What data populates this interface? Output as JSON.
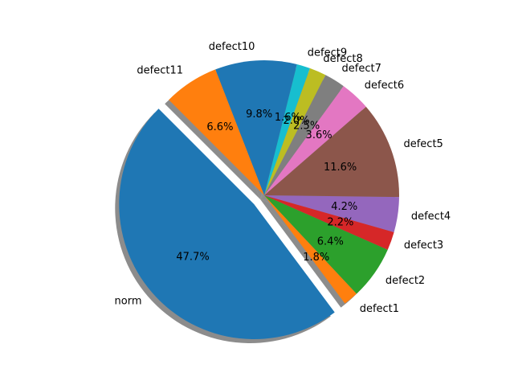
{
  "chart_data": {
    "type": "pie",
    "title": "",
    "start_angle_deg": 135,
    "direction": "counterclockwise",
    "shadow": true,
    "exploded": [
      "norm"
    ],
    "slices": [
      {
        "label": "norm",
        "value": 47.7,
        "pct_label": "47.7%",
        "color": "#1f77b4"
      },
      {
        "label": "defect1",
        "value": 1.8,
        "pct_label": "1.8%",
        "color": "#ff7f0e"
      },
      {
        "label": "defect2",
        "value": 6.4,
        "pct_label": "6.4%",
        "color": "#2ca02c"
      },
      {
        "label": "defect3",
        "value": 2.2,
        "pct_label": "2.2%",
        "color": "#d62728"
      },
      {
        "label": "defect4",
        "value": 4.2,
        "pct_label": "4.2%",
        "color": "#9467bd"
      },
      {
        "label": "defect5",
        "value": 11.6,
        "pct_label": "11.6%",
        "color": "#8c564b"
      },
      {
        "label": "defect6",
        "value": 3.6,
        "pct_label": "3.6%",
        "color": "#e377c2"
      },
      {
        "label": "defect7",
        "value": 2.5,
        "pct_label": "2.5%",
        "color": "#7f7f7f"
      },
      {
        "label": "defect8",
        "value": 2.0,
        "pct_label": "2.0%",
        "color": "#bcbd22"
      },
      {
        "label": "defect9",
        "value": 1.6,
        "pct_label": "1.6%",
        "color": "#17becf"
      },
      {
        "label": "defect10",
        "value": 9.8,
        "pct_label": "9.8%",
        "color": "#1f77b4"
      },
      {
        "label": "defect11",
        "value": 6.6,
        "pct_label": "6.6%",
        "color": "#ff7f0e"
      }
    ]
  }
}
